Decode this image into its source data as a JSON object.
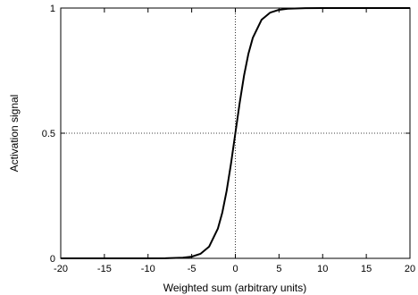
{
  "chart_data": {
    "type": "line",
    "title": "",
    "xlabel": "Weighted sum (arbitrary units)",
    "ylabel": "Activation signal",
    "xlim": [
      -20,
      20
    ],
    "ylim": [
      0,
      1
    ],
    "x_ticks": [
      -20,
      -15,
      -10,
      -5,
      0,
      5,
      10,
      15,
      20
    ],
    "y_ticks": [
      0,
      0.5,
      1
    ],
    "x_tick_labels": [
      "-20",
      "-15",
      "-10",
      "-5",
      "0",
      "5",
      "10",
      "15",
      "20"
    ],
    "y_tick_labels": [
      "0",
      "0.5",
      "1"
    ],
    "grid": false,
    "reference_lines": [
      {
        "orientation": "vertical",
        "value": 0,
        "style": "dotted"
      },
      {
        "orientation": "horizontal",
        "value": 0.5,
        "style": "dotted"
      }
    ],
    "series": [
      {
        "color": "#000000",
        "x": [
          -20,
          -10,
          -8,
          -6,
          -5,
          -4,
          -3,
          -2,
          -1.5,
          -1,
          -0.5,
          0,
          0.5,
          1,
          1.5,
          2,
          3,
          4,
          5,
          6,
          8,
          10,
          20
        ],
        "y": [
          0,
          0.0001,
          0.0003,
          0.0025,
          0.0067,
          0.018,
          0.047,
          0.119,
          0.182,
          0.269,
          0.378,
          0.5,
          0.622,
          0.731,
          0.818,
          0.881,
          0.953,
          0.982,
          0.993,
          0.9975,
          0.9997,
          0.9999,
          1
        ]
      }
    ]
  }
}
